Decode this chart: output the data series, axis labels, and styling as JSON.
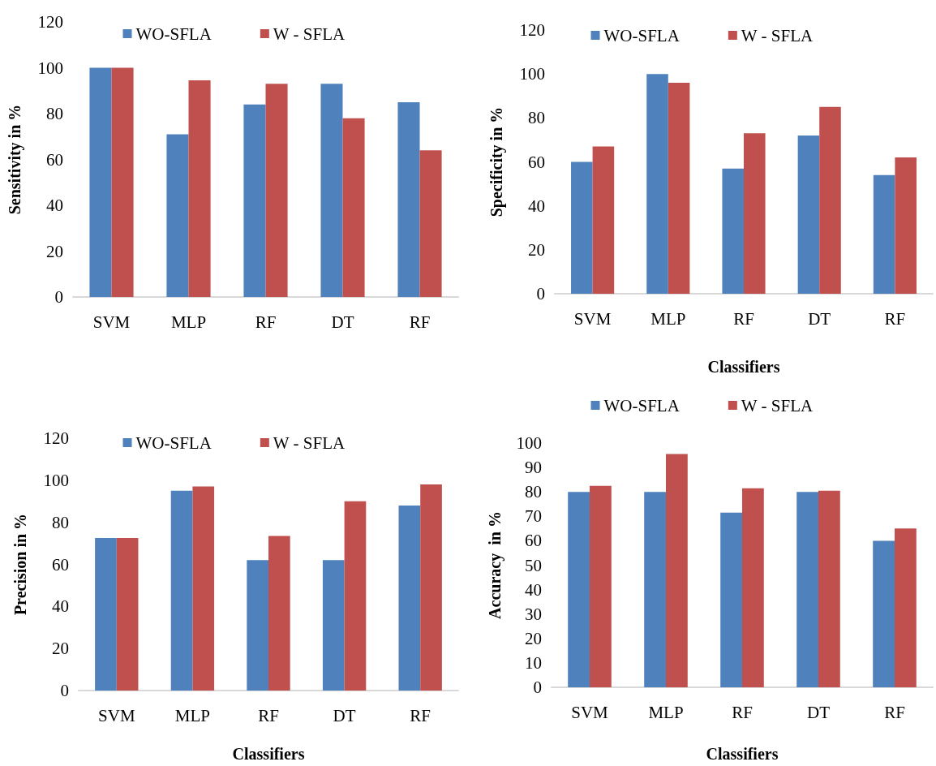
{
  "chart_data": [
    {
      "type": "bar",
      "ylabel": "Sensitivity in %",
      "categories": [
        "SVM",
        "MLP",
        "RF",
        "DT",
        "RF"
      ],
      "ylim": [
        0,
        120
      ],
      "yticks": [
        0,
        20,
        40,
        60,
        80,
        100,
        120
      ],
      "legend": "top",
      "series": [
        {
          "name": "WO-SFLA",
          "color": "#4f81bd",
          "values": [
            100,
            71,
            84,
            93,
            85
          ]
        },
        {
          "name": "W - SFLA",
          "color": "#c0504d",
          "values": [
            100,
            94.5,
            93,
            78,
            64
          ]
        }
      ]
    },
    {
      "type": "bar",
      "ylabel": "Specificity in %",
      "xlabel": "Classifiers",
      "categories": [
        "SVM",
        "MLP",
        "RF",
        "DT",
        "RF"
      ],
      "ylim": [
        0,
        120
      ],
      "yticks": [
        0,
        20,
        40,
        60,
        80,
        100,
        120
      ],
      "legend": "top",
      "series": [
        {
          "name": "WO-SFLA",
          "color": "#4f81bd",
          "values": [
            60,
            100,
            57,
            72,
            54
          ]
        },
        {
          "name": "W - SFLA",
          "color": "#c0504d",
          "values": [
            67,
            96,
            73,
            85,
            62
          ]
        }
      ]
    },
    {
      "type": "bar",
      "ylabel": "Precision in %",
      "xlabel": "Classifiers",
      "categories": [
        "SVM",
        "MLP",
        "RF",
        "DT",
        "RF"
      ],
      "ylim": [
        0,
        120
      ],
      "yticks": [
        0,
        20,
        40,
        60,
        80,
        100,
        120
      ],
      "legend": "top",
      "series": [
        {
          "name": "WO-SFLA",
          "color": "#4f81bd",
          "values": [
            72.5,
            95,
            62,
            62,
            88
          ]
        },
        {
          "name": "W - SFLA",
          "color": "#c0504d",
          "values": [
            72.5,
            97,
            73.5,
            90,
            98
          ]
        }
      ]
    },
    {
      "type": "bar",
      "ylabel": "Accuracy  in %",
      "xlabel": "Classifiers",
      "categories": [
        "SVM",
        "MLP",
        "RF",
        "DT",
        "RF"
      ],
      "ylim": [
        0,
        100
      ],
      "yticks": [
        0,
        10,
        20,
        30,
        40,
        50,
        60,
        70,
        80,
        90,
        100
      ],
      "legend": "top",
      "series": [
        {
          "name": "WO-SFLA",
          "color": "#4f81bd",
          "values": [
            80,
            80,
            71.5,
            80,
            60
          ]
        },
        {
          "name": "W - SFLA",
          "color": "#c0504d",
          "values": [
            82.5,
            95.5,
            81.5,
            80.5,
            65
          ]
        }
      ]
    }
  ]
}
